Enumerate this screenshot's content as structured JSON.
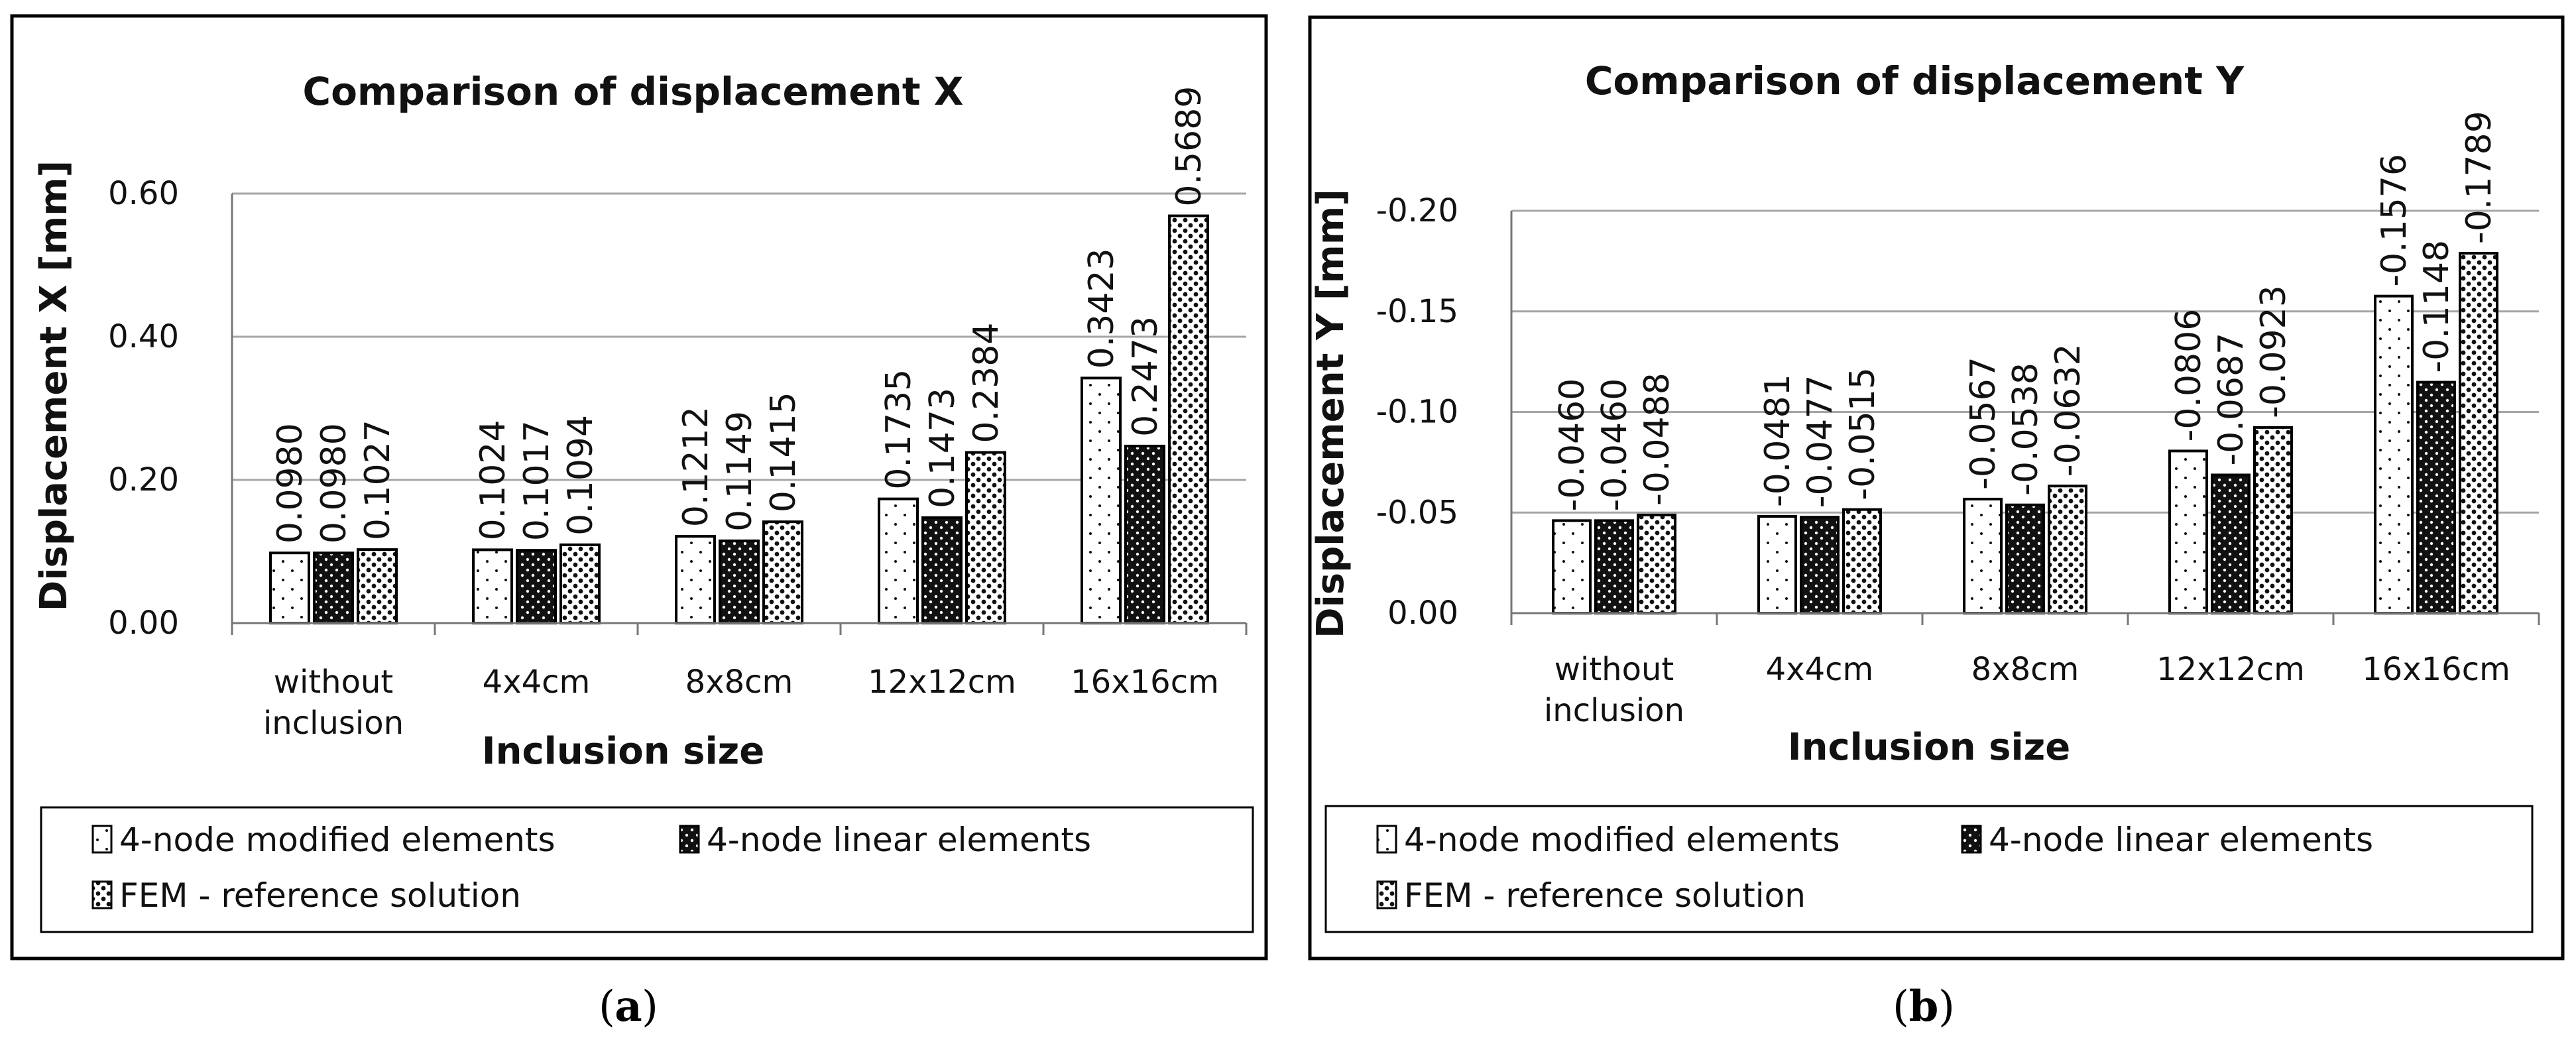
{
  "subcaptions": {
    "a": "a",
    "b": "b"
  },
  "colors": {
    "border": "#000000",
    "grid": "#a6a6a6",
    "bar_stroke": "#000000",
    "fill_modified": "#ffffff",
    "fill_linear": "#111111",
    "fill_fem": "#e8e8e8"
  },
  "chart_data": [
    {
      "id": "a",
      "type": "bar",
      "title": "Comparison of displacement X",
      "xlabel": "Inclusion size",
      "ylabel": "Displacement  X  [mm]",
      "categories": [
        [
          "without",
          "inclusion"
        ],
        [
          "4x4cm"
        ],
        [
          "8x8cm"
        ],
        [
          "12x12cm"
        ],
        [
          "16x16cm"
        ]
      ],
      "ylim": [
        0,
        0.6
      ],
      "yticks": [
        0,
        0.2,
        0.4,
        0.6
      ],
      "ytick_labels": [
        "0.00",
        "0.20",
        "0.40",
        "0.60"
      ],
      "grid": true,
      "legend_position": "bottom",
      "series": [
        {
          "name": "4-node modified elements",
          "pattern": "modified",
          "values": [
            0.098,
            0.1024,
            0.1212,
            0.1735,
            0.3423
          ],
          "labels": [
            "0.0980",
            "0.1024",
            "0.1212",
            "0.1735",
            "0.3423"
          ]
        },
        {
          "name": "4-node linear elements",
          "pattern": "linear",
          "values": [
            0.098,
            0.1017,
            0.1149,
            0.1473,
            0.2473
          ],
          "labels": [
            "0.0980",
            "0.1017",
            "0.1149",
            "0.1473",
            "0.2473"
          ]
        },
        {
          "name": "FEM - reference solution",
          "pattern": "fem",
          "values": [
            0.1027,
            0.1094,
            0.1415,
            0.2384,
            0.5689
          ],
          "labels": [
            "0.1027",
            "0.1094",
            "0.1415",
            "0.2384",
            "0.5689"
          ]
        }
      ]
    },
    {
      "id": "b",
      "type": "bar",
      "title": "Comparison of displacement Y",
      "xlabel": "Inclusion size",
      "ylabel": "Displacement  Y  [mm]",
      "categories": [
        [
          "without",
          "inclusion"
        ],
        [
          "4x4cm"
        ],
        [
          "8x8cm"
        ],
        [
          "12x12cm"
        ],
        [
          "16x16cm"
        ]
      ],
      "ylim": [
        0,
        -0.2
      ],
      "yticks": [
        0,
        -0.05,
        -0.1,
        -0.15,
        -0.2
      ],
      "ytick_labels": [
        "0.00",
        "-0.05",
        "-0.10",
        "-0.15",
        "-0.20"
      ],
      "grid": true,
      "legend_position": "bottom",
      "series": [
        {
          "name": "4-node modified elements",
          "pattern": "modified",
          "values": [
            -0.046,
            -0.0481,
            -0.0567,
            -0.0806,
            -0.1576
          ],
          "labels": [
            "-0.0460",
            "-0.0481",
            "-0.0567",
            "-0.0806",
            "-0.1576"
          ]
        },
        {
          "name": "4-node linear elements",
          "pattern": "linear",
          "values": [
            -0.046,
            -0.0477,
            -0.0538,
            -0.0687,
            -0.1148
          ],
          "labels": [
            "-0.0460",
            "-0.0477",
            "-0.0538",
            "-0.0687",
            "-0.1148"
          ]
        },
        {
          "name": "FEM - reference solution",
          "pattern": "fem",
          "values": [
            -0.0488,
            -0.0515,
            -0.0632,
            -0.0923,
            -0.1789
          ],
          "labels": [
            "-0.0488",
            "-0.0515",
            "-0.0632",
            "-0.0923",
            "-0.1789"
          ]
        }
      ]
    }
  ]
}
